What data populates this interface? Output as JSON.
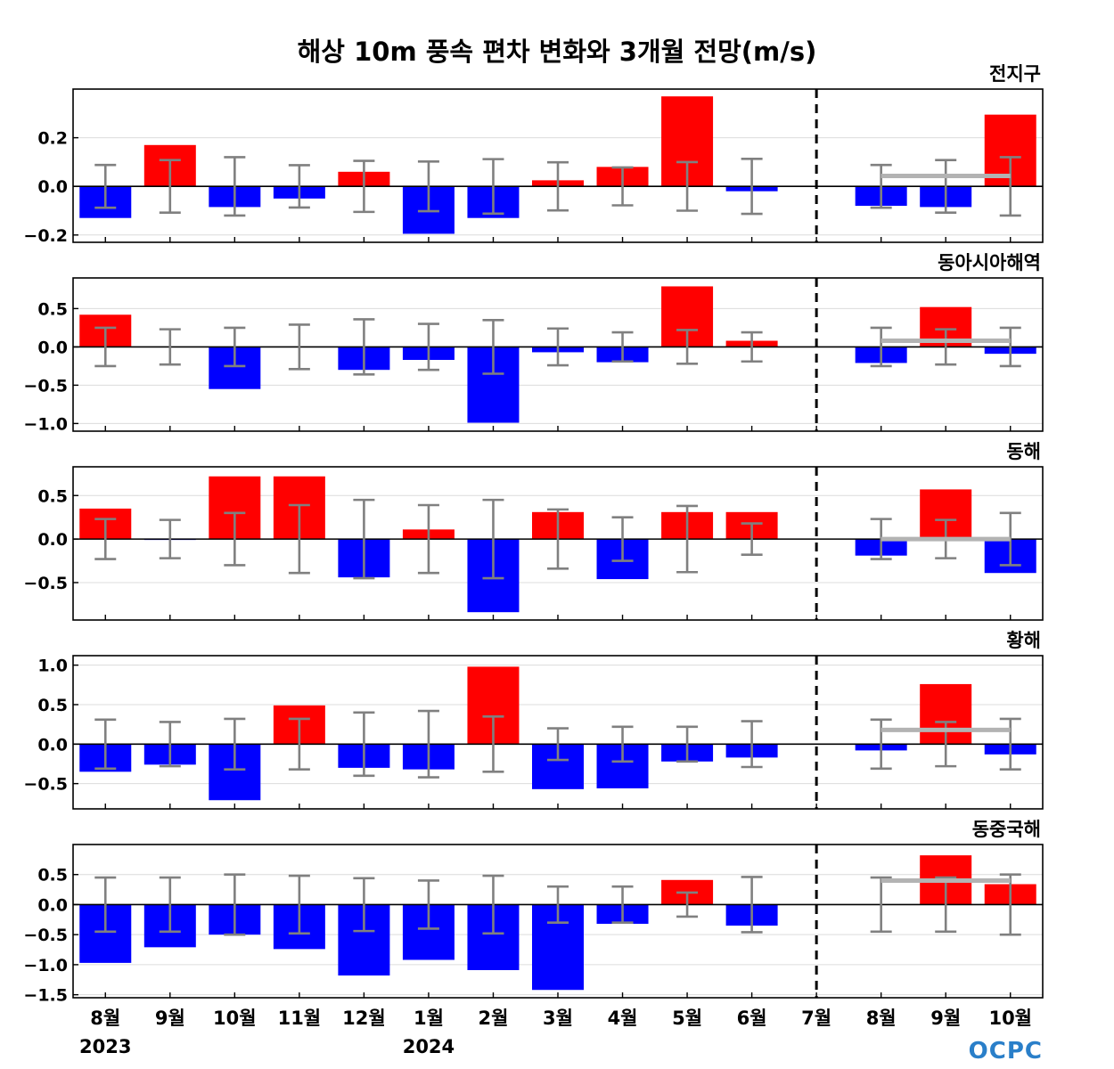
{
  "chart_data": {
    "type": "bar",
    "title": "해상 10m 풍속 편차 변화와 3개월 전망(m/s)",
    "categories": [
      "8월",
      "9월",
      "10월",
      "11월",
      "12월",
      "1월",
      "2월",
      "3월",
      "4월",
      "5월",
      "6월",
      "7월",
      "8월",
      "9월",
      "10월"
    ],
    "year_labels": [
      {
        "index": 0,
        "label": "2023"
      },
      {
        "index": 5,
        "label": "2024"
      }
    ],
    "forecast_start_index": 12,
    "logo_text": "OCPC",
    "colors": {
      "positive": "#ff0000",
      "negative": "#0000ff",
      "error_bar": "#808080",
      "forecast_line": "#b3b3b3",
      "divider": "#000000"
    },
    "grid": true,
    "panels": [
      {
        "name": "전지구",
        "ylim": [
          -0.23,
          0.4
        ],
        "yticks": [
          -0.2,
          0.0,
          0.2
        ],
        "tick_labels": [
          "−0.2",
          "0.0",
          "0.2"
        ],
        "values": [
          -0.13,
          0.17,
          -0.085,
          -0.05,
          0.06,
          -0.195,
          -0.13,
          0.025,
          0.08,
          0.37,
          -0.02,
          0.0,
          -0.08,
          -0.085,
          0.295
        ],
        "error": [
          0.088,
          0.108,
          0.12,
          0.087,
          0.105,
          0.102,
          0.112,
          0.099,
          0.078,
          0.1,
          0.113,
          null,
          0.088,
          0.108,
          0.12
        ],
        "forecast_mean": 0.043
      },
      {
        "name": "동아시아해역",
        "ylim": [
          -1.1,
          0.9
        ],
        "yticks": [
          -1.0,
          -0.5,
          0.0,
          0.5
        ],
        "tick_labels": [
          "−1.0",
          "−0.5",
          "0.0",
          "0.5"
        ],
        "values": [
          0.42,
          0.0,
          -0.55,
          0.0,
          -0.3,
          -0.17,
          -0.99,
          -0.07,
          -0.2,
          0.79,
          0.08,
          0.0,
          -0.21,
          0.52,
          -0.09
        ],
        "error": [
          0.25,
          0.23,
          0.25,
          0.29,
          0.36,
          0.3,
          0.35,
          0.24,
          0.19,
          0.22,
          0.19,
          null,
          0.25,
          0.23,
          0.25
        ],
        "forecast_mean": 0.08
      },
      {
        "name": "동해",
        "ylim": [
          -0.93,
          0.83
        ],
        "yticks": [
          -0.5,
          0.0,
          0.5
        ],
        "tick_labels": [
          "−0.5",
          "0.0",
          "0.5"
        ],
        "values": [
          0.35,
          -0.01,
          0.72,
          0.72,
          -0.44,
          0.11,
          -0.84,
          0.31,
          -0.46,
          0.31,
          0.31,
          0.0,
          -0.19,
          0.57,
          -0.39
        ],
        "error": [
          0.23,
          0.22,
          0.3,
          0.39,
          0.45,
          0.39,
          0.45,
          0.34,
          0.25,
          0.38,
          0.18,
          null,
          0.23,
          0.22,
          0.3
        ],
        "forecast_mean": 0.0
      },
      {
        "name": "황해",
        "ylim": [
          -0.82,
          1.12
        ],
        "yticks": [
          -0.5,
          0.0,
          0.5,
          1.0
        ],
        "tick_labels": [
          "−0.5",
          "0.0",
          "0.5",
          "1.0"
        ],
        "values": [
          -0.35,
          -0.26,
          -0.71,
          0.49,
          -0.3,
          -0.32,
          0.98,
          -0.57,
          -0.56,
          -0.22,
          -0.17,
          0.0,
          -0.08,
          0.76,
          -0.13
        ],
        "error": [
          0.31,
          0.28,
          0.32,
          0.32,
          0.4,
          0.42,
          0.35,
          0.2,
          0.22,
          0.22,
          0.29,
          null,
          0.31,
          0.28,
          0.32
        ],
        "forecast_mean": 0.18
      },
      {
        "name": "동중국해",
        "ylim": [
          -1.55,
          1.0
        ],
        "yticks": [
          -1.5,
          -1.0,
          -0.5,
          0.0,
          0.5
        ],
        "tick_labels": [
          "−1.5",
          "−1.0",
          "−0.5",
          "0.0",
          "0.5"
        ],
        "values": [
          -0.97,
          -0.71,
          -0.5,
          -0.74,
          -1.18,
          -0.92,
          -1.09,
          -1.42,
          -0.32,
          0.41,
          -0.35,
          0.0,
          0.0,
          0.82,
          0.34
        ],
        "error": [
          0.45,
          0.45,
          0.5,
          0.48,
          0.44,
          0.4,
          0.48,
          0.3,
          0.3,
          0.2,
          0.46,
          null,
          0.45,
          0.45,
          0.5
        ],
        "forecast_mean": 0.4
      }
    ]
  }
}
